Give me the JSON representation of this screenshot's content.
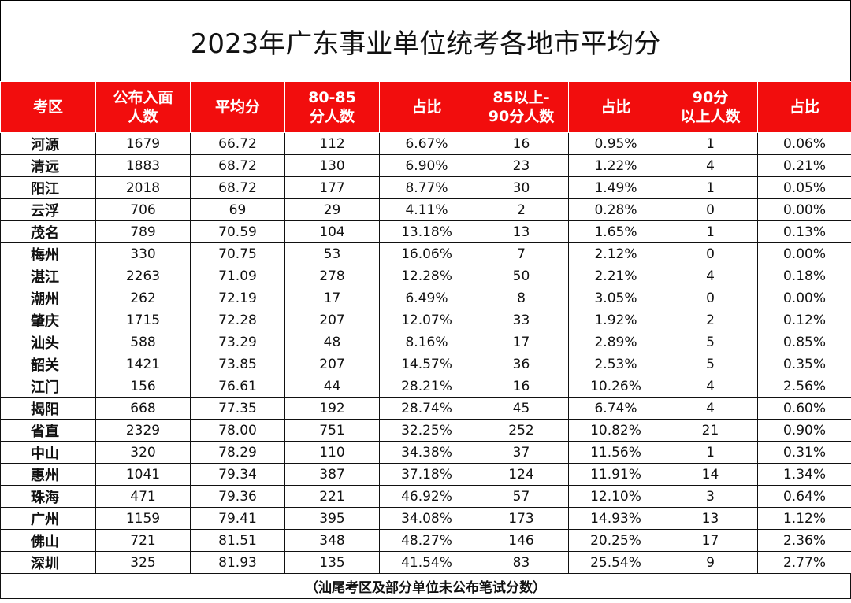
{
  "title": "2023年广东事业单位统考各地市平均分",
  "headers": [
    "考区",
    "公布入面\n人数",
    "平均分",
    "80-85\n分人数",
    "占比",
    "85以上-\n90分人数",
    "占比",
    "90分\n以上人数",
    "占比"
  ],
  "rows": [
    [
      "河源",
      "1679",
      "66.72",
      "112",
      "6.67%",
      "16",
      "0.95%",
      "1",
      "0.06%"
    ],
    [
      "清远",
      "1883",
      "68.72",
      "130",
      "6.90%",
      "23",
      "1.22%",
      "4",
      "0.21%"
    ],
    [
      "阳江",
      "2018",
      "68.72",
      "177",
      "8.77%",
      "30",
      "1.49%",
      "1",
      "0.05%"
    ],
    [
      "云浮",
      "706",
      "69",
      "29",
      "4.11%",
      "2",
      "0.28%",
      "0",
      "0.00%"
    ],
    [
      "茂名",
      "789",
      "70.59",
      "104",
      "13.18%",
      "13",
      "1.65%",
      "1",
      "0.13%"
    ],
    [
      "梅州",
      "330",
      "70.75",
      "53",
      "16.06%",
      "7",
      "2.12%",
      "0",
      "0.00%"
    ],
    [
      "湛江",
      "2263",
      "71.09",
      "278",
      "12.28%",
      "50",
      "2.21%",
      "4",
      "0.18%"
    ],
    [
      "潮州",
      "262",
      "72.19",
      "17",
      "6.49%",
      "8",
      "3.05%",
      "0",
      "0.00%"
    ],
    [
      "肇庆",
      "1715",
      "72.28",
      "207",
      "12.07%",
      "33",
      "1.92%",
      "2",
      "0.12%"
    ],
    [
      "汕头",
      "588",
      "73.29",
      "48",
      "8.16%",
      "17",
      "2.89%",
      "5",
      "0.85%"
    ],
    [
      "韶关",
      "1421",
      "73.85",
      "207",
      "14.57%",
      "36",
      "2.53%",
      "5",
      "0.35%"
    ],
    [
      "江门",
      "156",
      "76.61",
      "44",
      "28.21%",
      "16",
      "10.26%",
      "4",
      "2.56%"
    ],
    [
      "揭阳",
      "668",
      "77.35",
      "192",
      "28.74%",
      "45",
      "6.74%",
      "4",
      "0.60%"
    ],
    [
      "省直",
      "2329",
      "78.00",
      "751",
      "32.25%",
      "252",
      "10.82%",
      "21",
      "0.90%"
    ],
    [
      "中山",
      "320",
      "78.29",
      "110",
      "34.38%",
      "37",
      "11.56%",
      "1",
      "0.31%"
    ],
    [
      "惠州",
      "1041",
      "79.34",
      "387",
      "37.18%",
      "124",
      "11.91%",
      "14",
      "1.34%"
    ],
    [
      "珠海",
      "471",
      "79.36",
      "221",
      "46.92%",
      "57",
      "12.10%",
      "3",
      "0.64%"
    ],
    [
      "广州",
      "1159",
      "79.41",
      "395",
      "34.08%",
      "173",
      "14.93%",
      "13",
      "1.12%"
    ],
    [
      "佛山",
      "721",
      "81.51",
      "348",
      "48.27%",
      "146",
      "20.25%",
      "17",
      "2.36%"
    ],
    [
      "深圳",
      "325",
      "81.93",
      "135",
      "41.54%",
      "83",
      "25.54%",
      "9",
      "2.77%"
    ]
  ],
  "footnote": "（汕尾考区及部分单位未公布笔试分数）",
  "colors": {
    "header_bg": "#f20d0d",
    "header_text": "#ffffff"
  }
}
